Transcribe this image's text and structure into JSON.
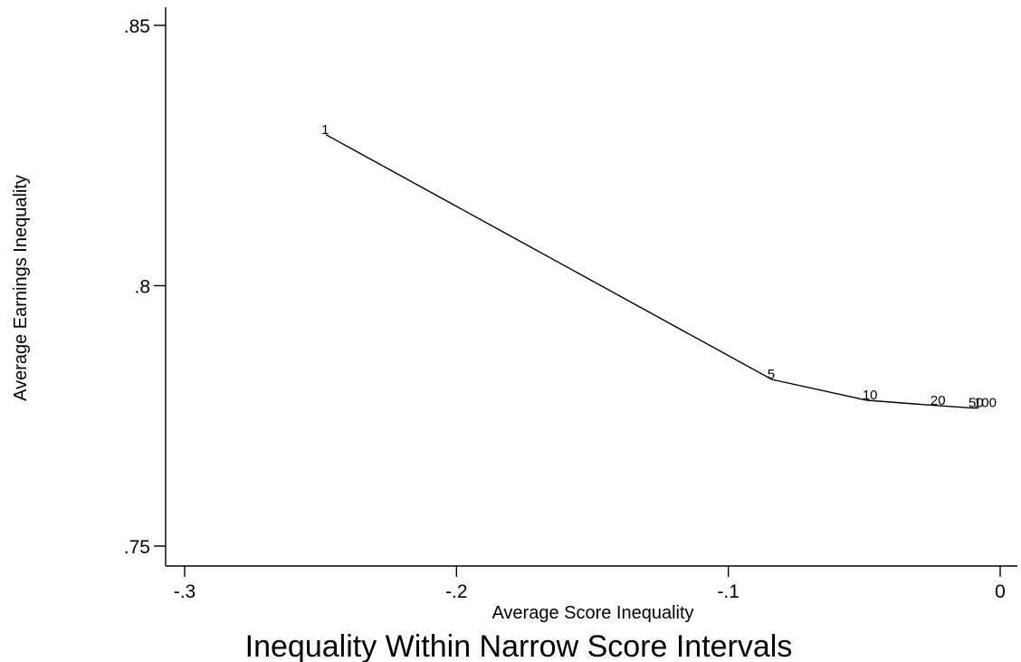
{
  "chart_data": {
    "type": "line",
    "title": "Inequality Within Narrow Score Intervals",
    "xlabel": "Average Score Inequality",
    "ylabel": "Average Earnings Inequality",
    "xlim": [
      -0.3,
      0
    ],
    "ylim": [
      0.75,
      0.85
    ],
    "xticks": [
      -0.3,
      -0.2,
      -0.1,
      0
    ],
    "xtick_labels": [
      "-.3",
      "-.2",
      "-.1",
      "0"
    ],
    "yticks": [
      0.75,
      0.8,
      0.85
    ],
    "ytick_labels": [
      ".75",
      ".8",
      ".85"
    ],
    "grid": false,
    "series": [
      {
        "x": [
          -0.248,
          -0.084,
          -0.049,
          -0.024,
          -0.01,
          -0.008
        ],
        "y": [
          0.829,
          0.782,
          0.778,
          0.777,
          0.7765,
          0.7765
        ],
        "point_labels": [
          "1",
          "5",
          "10",
          "20",
          "50",
          "100"
        ]
      }
    ]
  }
}
